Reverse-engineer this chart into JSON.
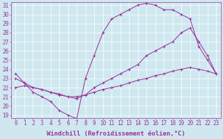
{
  "xlabel": "Windchill (Refroidissement éolien,°C)",
  "bg_color": "#cfe8f0",
  "line_color": "#993399",
  "xmin": 0,
  "xmax": 23,
  "ymin": 19,
  "ymax": 31,
  "series1_x": [
    0,
    1,
    2,
    3,
    4,
    5,
    6,
    7,
    8,
    9,
    10,
    11,
    12,
    13,
    14,
    15,
    16,
    17,
    18,
    19,
    20,
    21,
    22,
    23
  ],
  "series1_y": [
    23.5,
    22.5,
    21.5,
    21.0,
    20.5,
    19.5,
    19.0,
    18.6,
    23.0,
    25.5,
    28.0,
    29.5,
    30.0,
    30.5,
    31.0,
    31.2,
    31.0,
    30.5,
    30.5,
    30.0,
    29.5,
    26.5,
    25.0,
    23.5
  ],
  "series2_x": [
    0,
    1,
    2,
    3,
    4,
    5,
    6,
    7,
    8,
    9,
    10,
    11,
    12,
    13,
    14,
    15,
    16,
    17,
    18,
    19,
    20,
    21,
    22,
    23
  ],
  "series2_y": [
    23.0,
    22.5,
    22.0,
    21.8,
    21.5,
    21.2,
    21.0,
    20.8,
    21.2,
    22.0,
    22.5,
    23.0,
    23.5,
    24.0,
    24.5,
    25.5,
    26.0,
    26.5,
    27.0,
    28.0,
    28.5,
    27.0,
    25.5,
    23.5
  ],
  "series3_x": [
    0,
    1,
    2,
    3,
    4,
    5,
    6,
    7,
    8,
    9,
    10,
    11,
    12,
    13,
    14,
    15,
    16,
    17,
    18,
    19,
    20,
    21,
    22,
    23
  ],
  "series3_y": [
    22.0,
    22.2,
    22.0,
    21.8,
    21.5,
    21.3,
    21.0,
    21.0,
    21.2,
    21.5,
    21.8,
    22.0,
    22.2,
    22.5,
    22.8,
    23.0,
    23.3,
    23.5,
    23.8,
    24.0,
    24.2,
    24.0,
    23.8,
    23.5
  ],
  "yticks": [
    19,
    20,
    21,
    22,
    23,
    24,
    25,
    26,
    27,
    28,
    29,
    30,
    31
  ],
  "xticks": [
    0,
    1,
    2,
    3,
    4,
    5,
    6,
    7,
    8,
    9,
    10,
    11,
    12,
    13,
    14,
    15,
    16,
    17,
    18,
    19,
    20,
    21,
    22,
    23
  ],
  "tick_fontsize": 5.5,
  "label_fontsize": 6.5
}
